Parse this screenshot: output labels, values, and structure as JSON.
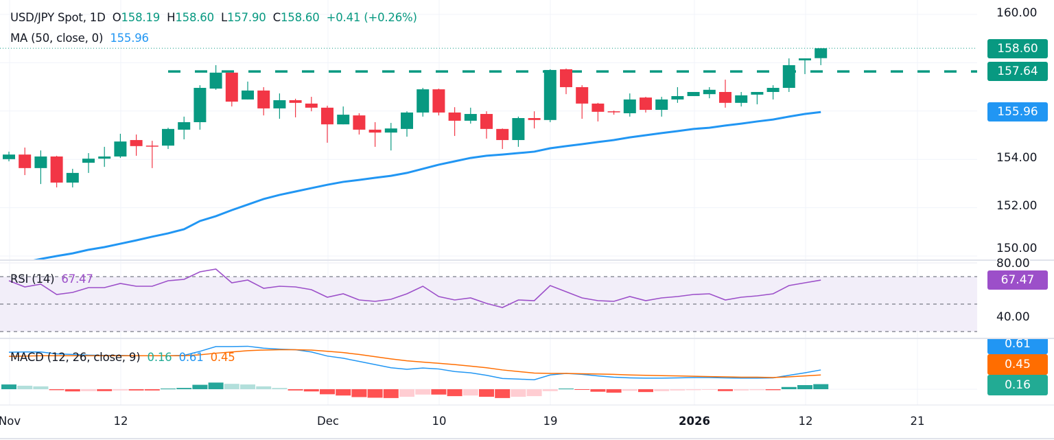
{
  "header": {
    "symbol": "USD/JPY Spot, 1D",
    "o_label": "O",
    "o": "158.19",
    "h_label": "H",
    "h": "158.60",
    "l_label": "L",
    "l": "157.90",
    "c_label": "C",
    "c": "158.60",
    "change": "+0.41 (+0.26%)",
    "ma_label": "MA (50, close, 0)",
    "ma_value": "155.96"
  },
  "rsi_legend": {
    "label": "RSI (14)",
    "value": "67.47"
  },
  "macd_legend": {
    "label": "MACD (12, 26, close, 9)",
    "hist": "0.16",
    "macd": "0.61",
    "signal": "0.45"
  },
  "price_axis": {
    "ticks": [
      "160.00",
      "154.00",
      "152.00",
      "150.00"
    ]
  },
  "rsi_axis": {
    "ticks": [
      "80.00",
      "40.00"
    ]
  },
  "tags": {
    "last_price": "158.60",
    "resistance": "157.64",
    "ma": "155.96",
    "rsi": "67.47",
    "macd": "0.61",
    "signal": "0.45",
    "hist": "0.16"
  },
  "colors": {
    "up": "#089981",
    "down": "#F23645",
    "ma": "#2196F3",
    "rsi": "#9C4FC9",
    "macd": "#2196F3",
    "signal": "#FF6D00",
    "hist_up_strong": "#26A69A",
    "hist_up_weak": "#B2DFDB",
    "hist_down_strong": "#FF5252",
    "hist_down_weak": "#FFCDD2"
  },
  "chart_data": {
    "type": "candlestick",
    "x_tick_labels": [
      "Nov",
      "12",
      "Dec",
      "10",
      "19",
      "2026",
      "12",
      "21"
    ],
    "ylim": [
      150,
      160
    ],
    "resistance_level": 157.64,
    "ohlc": [
      [
        154.01,
        154.32,
        153.92,
        154.2
      ],
      [
        154.2,
        154.49,
        153.35,
        153.64
      ],
      [
        153.64,
        154.37,
        152.98,
        154.12
      ],
      [
        154.12,
        154.15,
        152.84,
        153.04
      ],
      [
        153.04,
        153.61,
        152.84,
        153.44
      ],
      [
        153.86,
        154.26,
        153.44,
        154.03
      ],
      [
        154.03,
        154.52,
        153.69,
        154.12
      ],
      [
        154.12,
        155.06,
        154.06,
        154.74
      ],
      [
        154.8,
        155.03,
        154.15,
        154.55
      ],
      [
        154.57,
        154.77,
        153.64,
        154.55
      ],
      [
        154.57,
        155.31,
        154.43,
        155.26
      ],
      [
        155.23,
        155.77,
        154.83,
        155.54
      ],
      [
        155.54,
        157.07,
        155.23,
        156.96
      ],
      [
        156.93,
        157.9,
        156.88,
        157.59
      ],
      [
        157.59,
        157.59,
        156.19,
        156.39
      ],
      [
        156.48,
        157.22,
        156.48,
        156.85
      ],
      [
        156.85,
        156.99,
        155.82,
        156.11
      ],
      [
        156.11,
        156.73,
        155.68,
        156.45
      ],
      [
        156.45,
        156.51,
        155.74,
        156.34
      ],
      [
        156.31,
        156.59,
        155.99,
        156.14
      ],
      [
        156.14,
        156.22,
        154.69,
        155.45
      ],
      [
        155.45,
        156.19,
        155.45,
        155.85
      ],
      [
        155.82,
        155.91,
        155.03,
        155.23
      ],
      [
        155.23,
        155.54,
        154.52,
        155.11
      ],
      [
        155.11,
        155.51,
        154.37,
        155.28
      ],
      [
        155.26,
        155.99,
        154.94,
        155.94
      ],
      [
        155.94,
        156.96,
        155.77,
        156.9
      ],
      [
        156.9,
        156.93,
        155.82,
        155.94
      ],
      [
        155.94,
        156.16,
        154.97,
        155.6
      ],
      [
        155.6,
        156.14,
        155.48,
        155.88
      ],
      [
        155.88,
        155.99,
        154.86,
        155.26
      ],
      [
        155.26,
        155.28,
        154.43,
        154.8
      ],
      [
        154.8,
        155.77,
        154.52,
        155.71
      ],
      [
        155.71,
        155.99,
        155.28,
        155.63
      ],
      [
        155.63,
        157.73,
        155.54,
        157.7
      ],
      [
        157.73,
        157.76,
        156.7,
        156.99
      ],
      [
        156.99,
        157.07,
        155.68,
        156.31
      ],
      [
        156.31,
        156.34,
        155.57,
        155.97
      ],
      [
        155.99,
        156.02,
        155.85,
        155.97
      ],
      [
        155.91,
        156.73,
        155.77,
        156.48
      ],
      [
        156.56,
        156.59,
        155.94,
        156.05
      ],
      [
        156.05,
        156.59,
        155.77,
        156.48
      ],
      [
        156.48,
        156.99,
        156.34,
        156.62
      ],
      [
        156.62,
        156.79,
        156.62,
        156.79
      ],
      [
        156.7,
        156.99,
        156.53,
        156.88
      ],
      [
        156.79,
        157.3,
        156.14,
        156.34
      ],
      [
        156.34,
        156.79,
        156.19,
        156.65
      ],
      [
        156.68,
        156.79,
        156.28,
        156.79
      ],
      [
        156.79,
        157.07,
        156.48,
        156.96
      ],
      [
        156.96,
        158.18,
        156.79,
        157.9
      ],
      [
        158.1,
        158.18,
        157.53,
        158.18
      ],
      [
        158.19,
        158.6,
        157.9,
        158.6
      ]
    ],
    "ma50": [
      149.63,
      149.74,
      149.88,
      150.0,
      150.11,
      150.26,
      150.37,
      150.51,
      150.65,
      150.8,
      150.94,
      151.11,
      151.45,
      151.65,
      151.9,
      152.13,
      152.36,
      152.53,
      152.67,
      152.81,
      152.95,
      153.07,
      153.15,
      153.24,
      153.32,
      153.44,
      153.61,
      153.78,
      153.92,
      154.06,
      154.15,
      154.2,
      154.26,
      154.32,
      154.46,
      154.55,
      154.63,
      154.72,
      154.8,
      154.91,
      155.0,
      155.09,
      155.17,
      155.26,
      155.31,
      155.4,
      155.48,
      155.57,
      155.65,
      155.77,
      155.88,
      155.96
    ],
    "rsi": {
      "levels": [
        70,
        50,
        30
      ],
      "ylim": [
        25,
        85
      ],
      "values": [
        67,
        62.5,
        64.5,
        57,
        58.5,
        62,
        62,
        65,
        63,
        63,
        67,
        68,
        73.5,
        75.5,
        65.5,
        67.5,
        61.5,
        63,
        62.5,
        60.5,
        55,
        57.5,
        53,
        52,
        53.5,
        57.5,
        63,
        55.5,
        53,
        54.5,
        50.5,
        47.5,
        53,
        52.5,
        63.5,
        59,
        54.5,
        52.5,
        52,
        55.5,
        52.5,
        54.5,
        55.5,
        57,
        57.5,
        53,
        55,
        56,
        57.5,
        63.5,
        65.5,
        67.47
      ]
    },
    "macd": {
      "macd": [
        1.17,
        1.18,
        1.18,
        1.12,
        1.1,
        1.08,
        1.07,
        1.07,
        1.06,
        1.06,
        1.06,
        1.07,
        1.2,
        1.35,
        1.35,
        1.36,
        1.3,
        1.27,
        1.25,
        1.18,
        1.05,
        0.98,
        0.88,
        0.78,
        0.68,
        0.63,
        0.67,
        0.64,
        0.56,
        0.52,
        0.44,
        0.34,
        0.32,
        0.3,
        0.45,
        0.5,
        0.47,
        0.42,
        0.38,
        0.36,
        0.35,
        0.35,
        0.36,
        0.37,
        0.37,
        0.36,
        0.35,
        0.35,
        0.36,
        0.44,
        0.52,
        0.61
      ],
      "signal": [
        1.04,
        1.05,
        1.06,
        1.06,
        1.06,
        1.06,
        1.06,
        1.06,
        1.06,
        1.06,
        1.06,
        1.06,
        1.09,
        1.14,
        1.18,
        1.22,
        1.24,
        1.25,
        1.25,
        1.24,
        1.2,
        1.16,
        1.1,
        1.03,
        0.96,
        0.9,
        0.86,
        0.82,
        0.78,
        0.73,
        0.68,
        0.61,
        0.56,
        0.51,
        0.5,
        0.5,
        0.49,
        0.48,
        0.47,
        0.45,
        0.44,
        0.43,
        0.42,
        0.41,
        0.4,
        0.39,
        0.38,
        0.38,
        0.37,
        0.39,
        0.42,
        0.45
      ],
      "histogram": [
        0.15,
        0.11,
        0.09,
        -0.03,
        -0.07,
        -0.06,
        -0.06,
        -0.04,
        -0.04,
        -0.04,
        0.02,
        0.04,
        0.14,
        0.21,
        0.17,
        0.15,
        0.09,
        0.04,
        -0.04,
        -0.07,
        -0.16,
        -0.2,
        -0.25,
        -0.27,
        -0.28,
        -0.24,
        -0.17,
        -0.17,
        -0.22,
        -0.2,
        -0.24,
        -0.28,
        -0.24,
        -0.22,
        -0.06,
        0.02,
        -0.02,
        -0.08,
        -0.11,
        -0.05,
        -0.09,
        -0.06,
        -0.04,
        -0.03,
        -0.02,
        -0.06,
        -0.04,
        -0.03,
        -0.03,
        0.07,
        0.13,
        0.16
      ]
    }
  }
}
